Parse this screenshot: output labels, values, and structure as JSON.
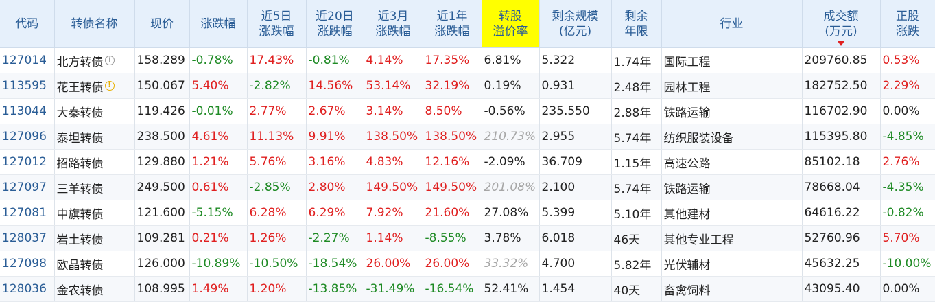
{
  "headers": [
    {
      "line1": "代码",
      "line2": ""
    },
    {
      "line1": "转债名称",
      "line2": ""
    },
    {
      "line1": "现价",
      "line2": ""
    },
    {
      "line1": "涨跌幅",
      "line2": ""
    },
    {
      "line1": "近5日",
      "line2": "涨跌幅"
    },
    {
      "line1": "近20日",
      "line2": "涨跌幅"
    },
    {
      "line1": "近3月",
      "line2": "涨跌幅"
    },
    {
      "line1": "近1年",
      "line2": "涨跌幅"
    },
    {
      "line1": "转股",
      "line2": "溢价率"
    },
    {
      "line1": "剩余规模",
      "line2": "(亿元)"
    },
    {
      "line1": "剩余",
      "line2": "年限"
    },
    {
      "line1": "行业",
      "line2": ""
    },
    {
      "line1": "成交额",
      "line2": "(万元)"
    },
    {
      "line1": "正股",
      "line2": "涨跌"
    }
  ],
  "colors": {
    "up": "#e02020",
    "down": "#1e8a24",
    "header_bg": "#e6f0fb",
    "highlight": "#ffff00"
  },
  "rows": [
    {
      "code": "127014",
      "name": "北方转债",
      "icon": "info-icon",
      "price": "158.289",
      "chg": "-0.78%",
      "chg5": "17.43%",
      "chg20": "-0.81%",
      "chg3m": "4.14%",
      "chg1y": "17.35%",
      "premium": "6.81%",
      "scale": "5.322",
      "years": "1.74年",
      "industry": "国际工程",
      "turnover": "209760.85",
      "stock": "0.53%"
    },
    {
      "code": "113595",
      "name": "花王转债",
      "icon": "warning-icon",
      "price": "150.067",
      "chg": "5.40%",
      "chg5": "-2.82%",
      "chg20": "14.56%",
      "chg3m": "53.14%",
      "chg1y": "32.19%",
      "premium": "0.19%",
      "scale": "0.931",
      "years": "2.48年",
      "industry": "园林工程",
      "turnover": "182752.50",
      "stock": "2.29%"
    },
    {
      "code": "113044",
      "name": "大秦转债",
      "icon": "",
      "price": "119.426",
      "chg": "-0.01%",
      "chg5": "2.77%",
      "chg20": "2.67%",
      "chg3m": "3.14%",
      "chg1y": "8.50%",
      "premium": "-0.56%",
      "scale": "235.550",
      "years": "2.88年",
      "industry": "铁路运输",
      "turnover": "116702.90",
      "stock": "0.00%"
    },
    {
      "code": "127096",
      "name": "泰坦转债",
      "icon": "",
      "price": "238.500",
      "chg": "4.61%",
      "chg5": "11.13%",
      "chg20": "9.91%",
      "chg3m": "138.50%",
      "chg1y": "138.50%",
      "premium": "210.73%",
      "premium_style": "ital",
      "scale": "2.955",
      "years": "5.74年",
      "industry": "纺织服装设备",
      "turnover": "115395.80",
      "stock": "-4.85%"
    },
    {
      "code": "127012",
      "name": "招路转债",
      "icon": "",
      "price": "129.880",
      "chg": "1.21%",
      "chg5": "5.76%",
      "chg20": "3.16%",
      "chg3m": "4.83%",
      "chg1y": "12.16%",
      "premium": "-2.09%",
      "scale": "36.709",
      "years": "1.15年",
      "industry": "高速公路",
      "turnover": "85102.18",
      "stock": "2.76%"
    },
    {
      "code": "127097",
      "name": "三羊转债",
      "icon": "",
      "price": "249.500",
      "chg": "0.61%",
      "chg5": "-2.85%",
      "chg20": "2.80%",
      "chg3m": "149.50%",
      "chg1y": "149.50%",
      "premium": "201.08%",
      "premium_style": "ital",
      "scale": "2.100",
      "years": "5.74年",
      "industry": "铁路运输",
      "turnover": "78668.04",
      "stock": "-4.35%"
    },
    {
      "code": "127081",
      "name": "中旗转债",
      "icon": "",
      "price": "121.600",
      "chg": "-5.15%",
      "chg5": "6.28%",
      "chg20": "6.29%",
      "chg3m": "7.92%",
      "chg1y": "21.60%",
      "premium": "27.08%",
      "scale": "5.399",
      "years": "5.10年",
      "industry": "其他建材",
      "turnover": "64616.22",
      "stock": "-0.82%"
    },
    {
      "code": "128037",
      "name": "岩土转债",
      "icon": "",
      "price": "109.281",
      "chg": "0.21%",
      "chg5": "1.26%",
      "chg20": "-2.27%",
      "chg3m": "1.14%",
      "chg1y": "-8.55%",
      "premium": "3.78%",
      "scale": "6.018",
      "years": "46天",
      "industry": "其他专业工程",
      "turnover": "52760.96",
      "stock": "5.70%"
    },
    {
      "code": "127098",
      "name": "欧晶转债",
      "icon": "",
      "price": "126.000",
      "chg": "-10.89%",
      "chg5": "-10.50%",
      "chg20": "-18.54%",
      "chg3m": "26.00%",
      "chg1y": "26.00%",
      "premium": "33.32%",
      "premium_style": "ital",
      "scale": "4.700",
      "years": "5.82年",
      "industry": "光伏辅材",
      "turnover": "45632.25",
      "stock": "-10.00%"
    },
    {
      "code": "128036",
      "name": "金农转债",
      "icon": "",
      "price": "108.995",
      "chg": "1.49%",
      "chg5": "1.20%",
      "chg20": "-13.85%",
      "chg3m": "-31.49%",
      "chg1y": "-16.54%",
      "premium": "52.41%",
      "scale": "1.454",
      "years": "40天",
      "industry": "畜禽饲料",
      "turnover": "43095.40",
      "stock": "0.00%"
    }
  ]
}
